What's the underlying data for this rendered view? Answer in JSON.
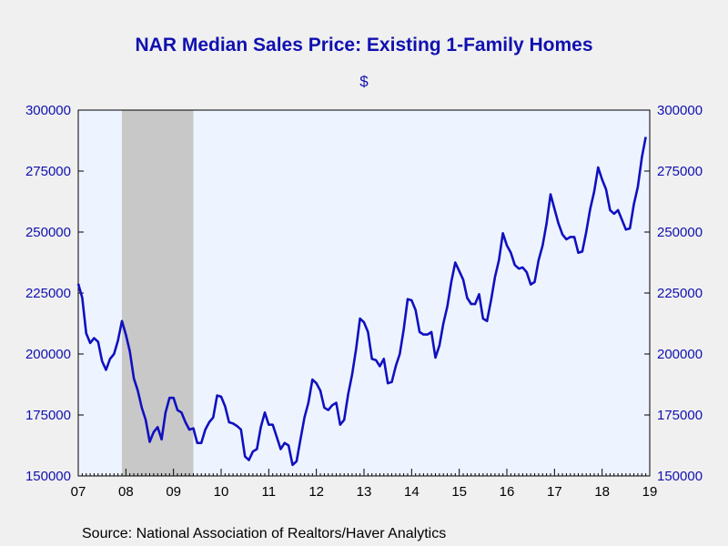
{
  "chart_data": {
    "type": "line",
    "title": "NAR Median Sales Price: Existing 1-Family Homes",
    "subtitle": "$",
    "source": "Source:  National Association of Realtors/Haver Analytics",
    "xlabel": "",
    "ylabel": "",
    "ylim": [
      150000,
      300000
    ],
    "y_ticks": [
      150000,
      175000,
      200000,
      225000,
      250000,
      275000,
      300000
    ],
    "x_tick_labels": [
      "07",
      "08",
      "09",
      "10",
      "11",
      "12",
      "13",
      "14",
      "15",
      "16",
      "17",
      "18",
      "19"
    ],
    "x_range": [
      "2007-01",
      "2019-01"
    ],
    "grid": false,
    "recession_shading": [
      {
        "start": "2007-12",
        "end": "2009-06",
        "color": "#c8c8c8"
      }
    ],
    "colors": {
      "line": "#1010c0",
      "plot_bg": "#eef4ff",
      "recession": "#c8c8c8",
      "text": "#1010b0"
    },
    "series": [
      {
        "start": "2007-01",
        "frequency": "monthly",
        "values": [
          228800,
          223000,
          208500,
          204500,
          206500,
          205000,
          197000,
          193500,
          198000,
          200000,
          205500,
          213500,
          208000,
          201000,
          190000,
          185000,
          178000,
          173000,
          164000,
          168000,
          170000,
          165000,
          176000,
          182000,
          182000,
          177000,
          176000,
          172000,
          169000,
          169500,
          163500,
          163500,
          169000,
          172000,
          174000,
          183000,
          182500,
          178500,
          172000,
          171500,
          170500,
          169000,
          158000,
          156500,
          160000,
          161000,
          170000,
          176000,
          171000,
          171000,
          166000,
          161000,
          163500,
          162500,
          154500,
          156000,
          165000,
          174000,
          180000,
          189500,
          188000,
          185000,
          178000,
          177000,
          179000,
          180000,
          171000,
          173000,
          183500,
          191500,
          202000,
          214500,
          213000,
          209000,
          198000,
          197500,
          195000,
          198000,
          188000,
          188500,
          195000,
          200000,
          210000,
          222500,
          222000,
          218000,
          209000,
          208000,
          208000,
          209000,
          198500,
          203500,
          212500,
          219500,
          229500,
          237500,
          234000,
          230500,
          223000,
          220500,
          220500,
          224500,
          214500,
          213500,
          222000,
          231500,
          238500,
          249500,
          244500,
          241500,
          236500,
          235000,
          235500,
          233500,
          228500,
          229500,
          238500,
          244500,
          253500,
          265500,
          259500,
          253500,
          249000,
          247000,
          248000,
          248000,
          241500,
          242000,
          250000,
          259500,
          266500,
          276500,
          271500,
          267500,
          259000,
          257500,
          259000,
          255000,
          251000,
          251500,
          261500,
          268500,
          280500,
          289000
        ]
      }
    ]
  }
}
